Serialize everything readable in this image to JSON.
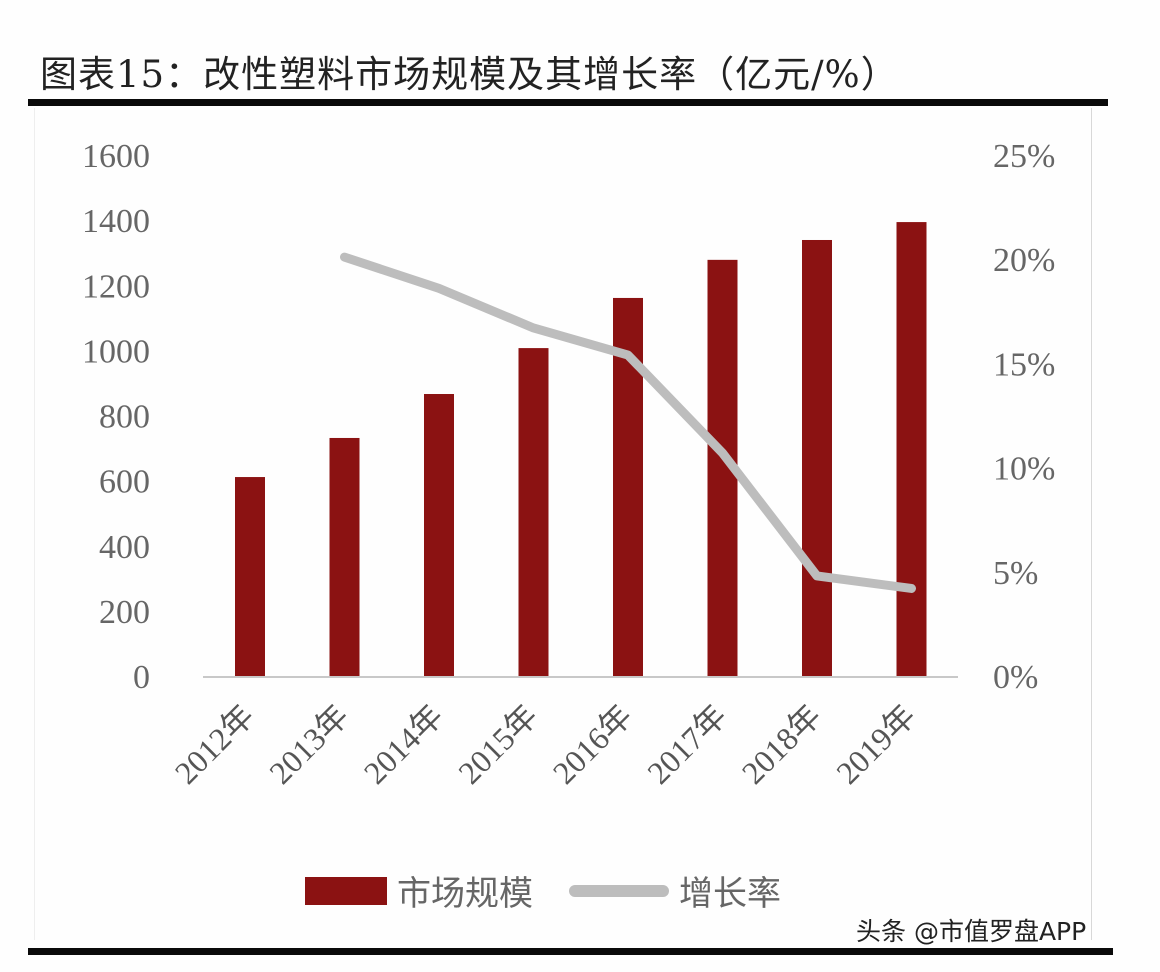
{
  "header": {
    "title": "图表15：改性塑料市场规模及其增长率（亿元/%）"
  },
  "colors": {
    "bar": "#8b1212",
    "line": "#bdbdbd",
    "axis_text": "#666666"
  },
  "legend": {
    "items": [
      {
        "label": "市场规模",
        "type": "bar"
      },
      {
        "label": "增长率",
        "type": "line"
      }
    ]
  },
  "watermark": "头条 @市值罗盘APP",
  "chart_data": {
    "type": "bar",
    "title": "图表15：改性塑料市场规模及其增长率（亿元/%）",
    "categories": [
      "2012年",
      "2013年",
      "2014年",
      "2015年",
      "2016年",
      "2017年",
      "2018年",
      "2019年"
    ],
    "series": [
      {
        "name": "市场规模",
        "type": "bar",
        "axis": "left",
        "values": [
          611,
          731,
          866,
          1007,
          1161,
          1278,
          1339,
          1394
        ]
      },
      {
        "name": "增长率",
        "type": "line",
        "axis": "right",
        "values": [
          null,
          20.1,
          18.6,
          16.7,
          15.4,
          10.7,
          4.8,
          4.2
        ]
      }
    ],
    "y_left": {
      "label": "亿元",
      "ticks": [
        0,
        200,
        400,
        600,
        800,
        1000,
        1200,
        1400,
        1600
      ],
      "ylim": [
        0,
        1600
      ]
    },
    "y_right": {
      "label": "%",
      "ticks": [
        "0%",
        "5%",
        "10%",
        "15%",
        "20%",
        "25%"
      ],
      "ylim": [
        0,
        25
      ]
    },
    "xlabel": "",
    "grid": false,
    "legend_position": "bottom"
  }
}
